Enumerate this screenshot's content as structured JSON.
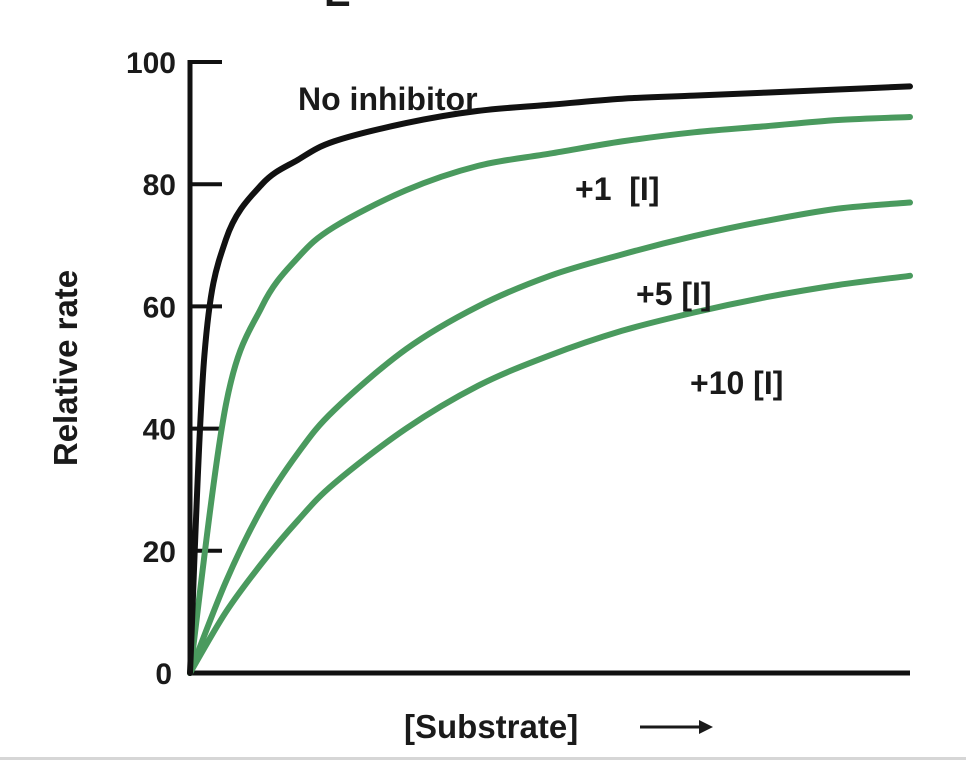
{
  "header_fragment": "E",
  "chart_data": {
    "type": "line",
    "xlabel": "[Substrate]",
    "xlabel_arrow": "⟶",
    "ylabel": "Relative rate",
    "ylim": [
      0,
      100
    ],
    "xlim": [
      0,
      100
    ],
    "yticks": [
      "0",
      "20",
      "40",
      "60",
      "80",
      "100"
    ],
    "grid": false,
    "legend": "inline labels",
    "series": [
      {
        "name": "No inhibitor",
        "color": "#111111",
        "x": [
          0,
          2,
          5,
          10,
          15,
          20,
          30,
          40,
          50,
          60,
          70,
          80,
          90,
          100
        ],
        "values": [
          0,
          52,
          71,
          80,
          84,
          87,
          90,
          92,
          93,
          94,
          94.5,
          95,
          95.5,
          96
        ]
      },
      {
        "name": "+1  [I]",
        "color": "#4a9a5e",
        "x": [
          0,
          5,
          10,
          15,
          20,
          30,
          40,
          50,
          60,
          70,
          80,
          90,
          100
        ],
        "values": [
          0,
          44,
          60,
          68,
          73,
          79,
          83,
          85,
          87,
          88.5,
          89.5,
          90.5,
          91
        ]
      },
      {
        "name": "+5 [I]",
        "color": "#4a9a5e",
        "x": [
          0,
          5,
          10,
          15,
          20,
          30,
          40,
          50,
          60,
          70,
          80,
          90,
          100
        ],
        "values": [
          0,
          15,
          27,
          36,
          43,
          53,
          60,
          65,
          68.5,
          71.5,
          74,
          76,
          77
        ]
      },
      {
        "name": "+10 [I]",
        "color": "#4a9a5e",
        "x": [
          0,
          5,
          10,
          15,
          20,
          30,
          40,
          50,
          60,
          70,
          80,
          90,
          100
        ],
        "values": [
          0,
          10,
          18,
          25,
          31,
          40,
          47,
          52,
          56,
          59,
          61.5,
          63.5,
          65
        ]
      }
    ]
  }
}
